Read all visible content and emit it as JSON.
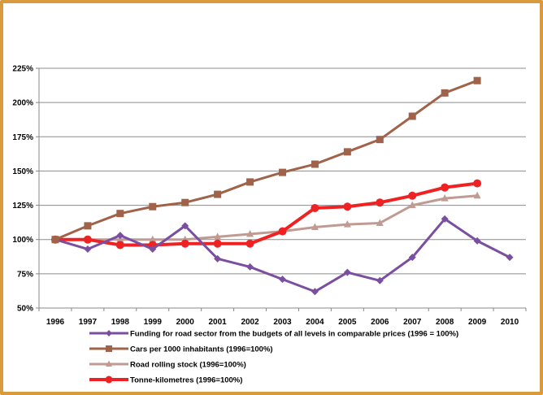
{
  "chart_data": {
    "type": "line",
    "categories": [
      "1996",
      "1997",
      "1998",
      "1999",
      "2000",
      "2001",
      "2002",
      "2003",
      "2004",
      "2005",
      "2006",
      "2007",
      "2008",
      "2009",
      "2010"
    ],
    "y_ticks": [
      "50%",
      "75%",
      "100%",
      "125%",
      "150%",
      "175%",
      "200%",
      "225%"
    ],
    "ylim": [
      50,
      225
    ],
    "grid": "horizontal",
    "legend_position": "bottom",
    "series": [
      {
        "name": "Funding for road sector from the budgets of all levels in comparable prices (1996 = 100%)",
        "color": "#7b4fa0",
        "marker": "diamond",
        "values": [
          100,
          93,
          103,
          93,
          110,
          86,
          80,
          71,
          62,
          76,
          70,
          87,
          115,
          99,
          87
        ]
      },
      {
        "name": "Cars per 1000 inhabitants (1996=100%)",
        "color": "#a0634a",
        "marker": "square",
        "values": [
          100,
          110,
          119,
          124,
          127,
          133,
          142,
          149,
          155,
          164,
          173,
          190,
          207,
          216,
          null
        ]
      },
      {
        "name": "Road rolling stock (1996=100%)",
        "color": "#c09b93",
        "marker": "triangle",
        "values": [
          100,
          100,
          100,
          100,
          100,
          102,
          104,
          106,
          109,
          111,
          112,
          125,
          130,
          132,
          null
        ]
      },
      {
        "name": "Tonne-kilometres (1996=100%)",
        "color": "#ee2222",
        "marker": "circle",
        "values": [
          100,
          100,
          96,
          96,
          97,
          97,
          97,
          106,
          123,
          124,
          127,
          132,
          138,
          141,
          null
        ]
      }
    ]
  }
}
